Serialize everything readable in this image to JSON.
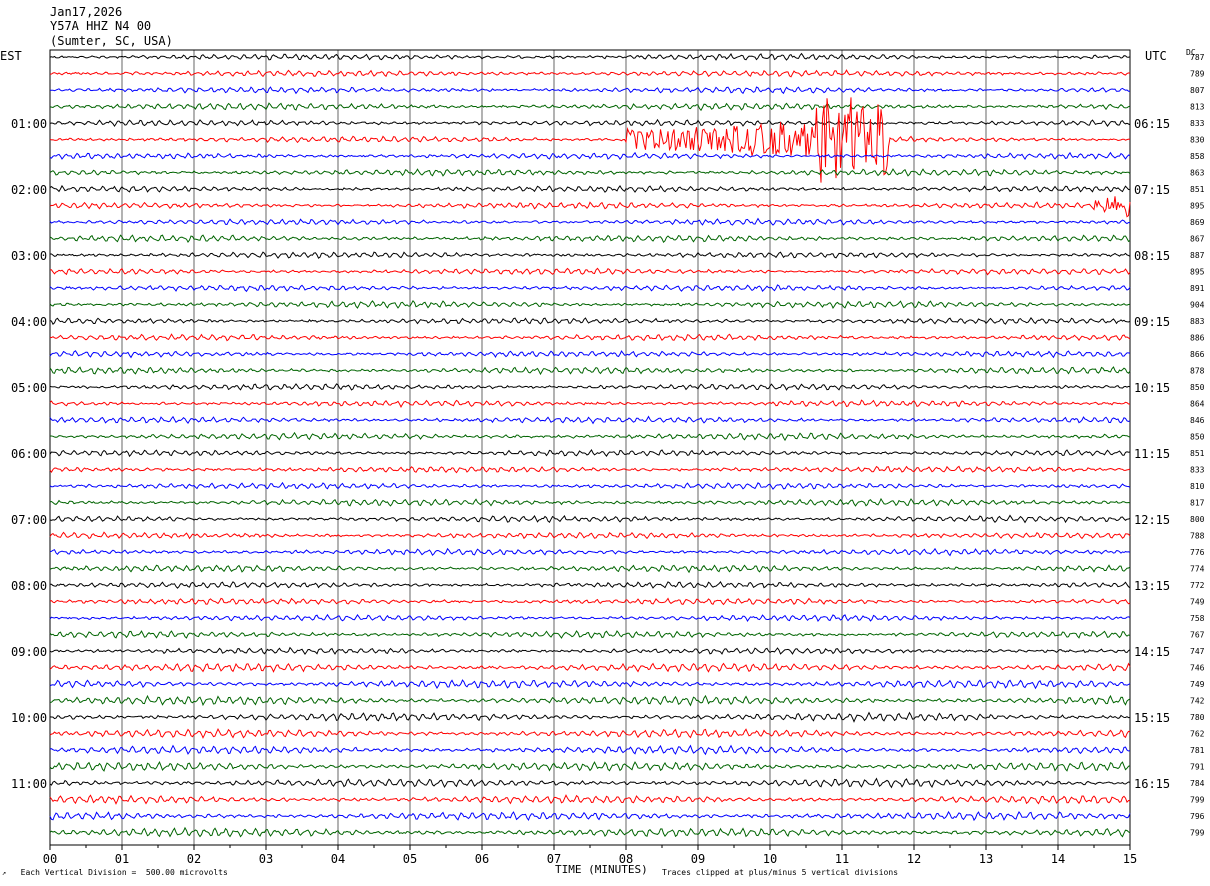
{
  "header": {
    "date": "Jan17,2026",
    "station": "Y57A HHZ N4 00",
    "location": "(Sumter, SC, USA)"
  },
  "left_axis_label": "EST",
  "right_axis_label": "UTC",
  "dc_label": "DC",
  "footer": {
    "scale_note": "Each Vertical Division =  500.00 microvolts",
    "x_title": "TIME (MINUTES)",
    "clip_note": "Traces clipped at plus/minus 5 vertical divisions"
  },
  "chart_data": {
    "type": "line",
    "title": "",
    "xlabel": "TIME (MINUTES)",
    "xlim": [
      0,
      15
    ],
    "x_ticks": [
      "00",
      "01",
      "02",
      "03",
      "04",
      "05",
      "06",
      "07",
      "08",
      "09",
      "10",
      "11",
      "12",
      "13",
      "14",
      "15"
    ],
    "trace_colors": [
      "#000000",
      "#ff0000",
      "#0000ff",
      "#006400"
    ],
    "left_hour_labels": [
      "01:00",
      "02:00",
      "03:00",
      "04:00",
      "05:00",
      "06:00",
      "07:00",
      "08:00",
      "09:00",
      "10:00",
      "11:00"
    ],
    "right_hour_labels": [
      "06:15",
      "07:15",
      "08:15",
      "09:15",
      "10:15",
      "11:15",
      "12:15",
      "13:15",
      "14:15",
      "15:15",
      "16:15"
    ],
    "dc_offsets": [
      787,
      789,
      807,
      813,
      833,
      830,
      858,
      863,
      851,
      895,
      869,
      867,
      887,
      895,
      891,
      904,
      883,
      886,
      866,
      878,
      850,
      864,
      846,
      850,
      851,
      833,
      810,
      817,
      800,
      788,
      776,
      774,
      772,
      749,
      758,
      767,
      747,
      746,
      749,
      742,
      780,
      762,
      781,
      791,
      784,
      799,
      796,
      799
    ],
    "events": [
      {
        "row": 5,
        "start_min": 8.0,
        "end_min": 11.65,
        "description": "earthquake signal"
      },
      {
        "row": 9,
        "start_min": 14.5,
        "end_min": 15.0,
        "description": "onset"
      }
    ]
  }
}
